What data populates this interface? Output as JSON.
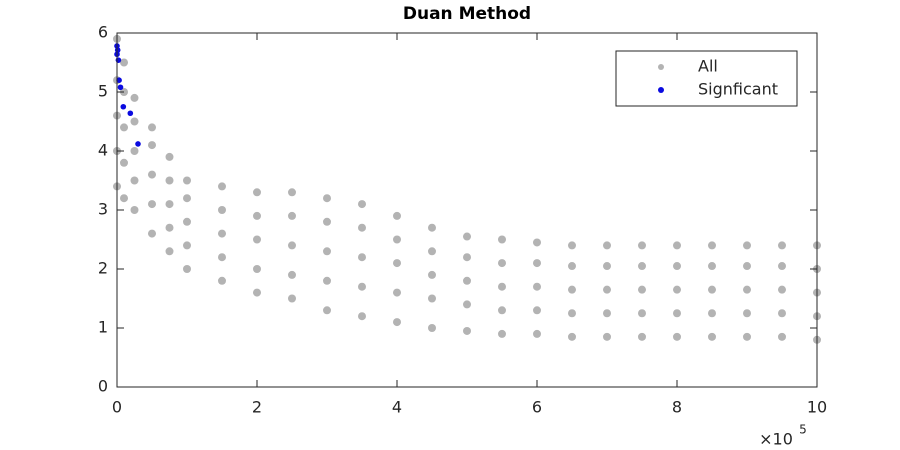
{
  "chart_data": {
    "type": "scatter",
    "title": "Duan Method",
    "x_multiplier": "×10",
    "x_multiplier_exponent": "5",
    "xlim": [
      0,
      10
    ],
    "xticks": [
      0,
      2,
      4,
      6,
      8,
      10
    ],
    "ylim": [
      0,
      6
    ],
    "yticks": [
      0,
      1,
      2,
      3,
      4,
      5,
      6
    ],
    "grid": false,
    "legend_loc": "upper right",
    "series": [
      {
        "name": "All",
        "color": "#b3b3b3",
        "x": [
          0,
          0,
          0,
          0,
          0,
          0.1,
          0.1,
          0.1,
          0.1,
          0.1,
          0.25,
          0.25,
          0.25,
          0.25,
          0.25,
          0.5,
          0.5,
          0.5,
          0.5,
          0.5,
          0.75,
          0.75,
          0.75,
          0.75,
          0.75,
          1,
          1,
          1,
          1,
          1,
          1.5,
          1.5,
          1.5,
          1.5,
          1.5,
          2,
          2,
          2,
          2,
          2,
          2.5,
          2.5,
          2.5,
          2.5,
          2.5,
          3,
          3,
          3,
          3,
          3,
          3.5,
          3.5,
          3.5,
          3.5,
          3.5,
          4,
          4,
          4,
          4,
          4,
          4.5,
          4.5,
          4.5,
          4.5,
          4.5,
          5,
          5,
          5,
          5,
          5,
          5.5,
          5.5,
          5.5,
          5.5,
          5.5,
          6,
          6,
          6,
          6,
          6,
          6.5,
          6.5,
          6.5,
          6.5,
          6.5,
          7,
          7,
          7,
          7,
          7,
          7.5,
          7.5,
          7.5,
          7.5,
          7.5,
          8,
          8,
          8,
          8,
          8,
          8.5,
          8.5,
          8.5,
          8.5,
          8.5,
          9,
          9,
          9,
          9,
          9,
          9.5,
          9.5,
          9.5,
          9.5,
          9.5,
          10,
          10,
          10,
          10,
          10
        ],
        "values": [
          3.4,
          4.0,
          4.6,
          5.2,
          5.9,
          3.2,
          3.8,
          4.4,
          5.0,
          5.5,
          3.0,
          3.5,
          4.0,
          4.5,
          4.9,
          2.6,
          3.1,
          3.6,
          4.1,
          4.4,
          2.3,
          2.7,
          3.1,
          3.5,
          3.9,
          2.0,
          2.4,
          2.8,
          3.2,
          3.5,
          1.8,
          2.2,
          2.6,
          3.0,
          3.4,
          1.6,
          2.0,
          2.5,
          2.9,
          3.3,
          1.5,
          1.9,
          2.4,
          2.9,
          3.3,
          1.3,
          1.8,
          2.3,
          2.8,
          3.2,
          1.2,
          1.7,
          2.2,
          2.7,
          3.1,
          1.1,
          1.6,
          2.1,
          2.5,
          2.9,
          1.0,
          1.5,
          1.9,
          2.3,
          2.7,
          0.95,
          1.4,
          1.8,
          2.2,
          2.55,
          0.9,
          1.3,
          1.7,
          2.1,
          2.5,
          0.9,
          1.3,
          1.7,
          2.1,
          2.45,
          0.85,
          1.25,
          1.65,
          2.05,
          2.4,
          0.85,
          1.25,
          1.65,
          2.05,
          2.4,
          0.85,
          1.25,
          1.65,
          2.05,
          2.4,
          0.85,
          1.25,
          1.65,
          2.05,
          2.4,
          0.85,
          1.25,
          1.65,
          2.05,
          2.4,
          0.85,
          1.25,
          1.65,
          2.05,
          2.4,
          0.85,
          1.25,
          1.65,
          2.05,
          2.4,
          0.8,
          1.2,
          1.6,
          2.0,
          2.4
        ]
      },
      {
        "name": "Signficant",
        "color": "#0a0ae0",
        "x": [
          0.0,
          0.01,
          0.0,
          0.02,
          0.03,
          0.05,
          0.09,
          0.19,
          0.3
        ],
        "values": [
          5.78,
          5.71,
          5.64,
          5.54,
          5.2,
          5.08,
          4.75,
          4.64,
          4.12
        ]
      }
    ]
  }
}
